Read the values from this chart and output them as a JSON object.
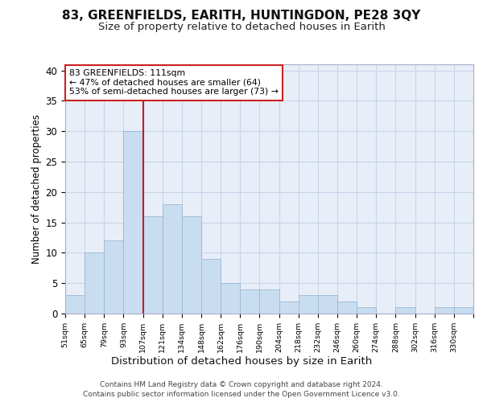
{
  "title1": "83, GREENFIELDS, EARITH, HUNTINGDON, PE28 3QY",
  "title2": "Size of property relative to detached houses in Earith",
  "xlabel": "Distribution of detached houses by size in Earith",
  "ylabel": "Number of detached properties",
  "bins": [
    "51sqm",
    "65sqm",
    "79sqm",
    "93sqm",
    "107sqm",
    "121sqm",
    "134sqm",
    "148sqm",
    "162sqm",
    "176sqm",
    "190sqm",
    "204sqm",
    "218sqm",
    "232sqm",
    "246sqm",
    "260sqm",
    "274sqm",
    "288sqm",
    "302sqm",
    "316sqm",
    "330sqm"
  ],
  "bar_heights": [
    3,
    10,
    12,
    30,
    16,
    18,
    16,
    9,
    5,
    4,
    4,
    2,
    3,
    3,
    2,
    1,
    0,
    1,
    0,
    1,
    1
  ],
  "bar_color": "#c9ddf0",
  "bar_edge_color": "#9ab8d4",
  "grid_color": "#c8d4e8",
  "bg_color": "#e8eef8",
  "vline_position": 4.0,
  "vline_color": "#bb2222",
  "annotation_text": "83 GREENFIELDS: 111sqm\n← 47% of detached houses are smaller (64)\n53% of semi-detached houses are larger (73) →",
  "annotation_box_color": "#ffffff",
  "annotation_box_edge": "#cc2222",
  "footer1": "Contains HM Land Registry data © Crown copyright and database right 2024.",
  "footer2": "Contains public sector information licensed under the Open Government Licence v3.0.",
  "ylim": [
    0,
    41
  ],
  "yticks": [
    0,
    5,
    10,
    15,
    20,
    25,
    30,
    35,
    40
  ],
  "title1_fontsize": 11,
  "title2_fontsize": 9.5
}
